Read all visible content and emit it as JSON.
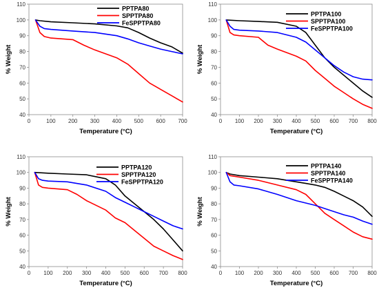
{
  "colors": {
    "black": "#000000",
    "red": "#ff0000",
    "blue": "#0000ff"
  },
  "chart_data": [
    {
      "type": "line",
      "xlabel": "Temperature (°C)",
      "ylabel": "% Weight",
      "xlim": [
        0,
        700
      ],
      "ylim": [
        40,
        110
      ],
      "xticks": [
        0,
        100,
        200,
        300,
        400,
        500,
        600,
        700
      ],
      "yticks": [
        40,
        50,
        60,
        70,
        80,
        90,
        100,
        110
      ],
      "legend_position": "top-right",
      "series": [
        {
          "name": "PPTPA80",
          "color": "black",
          "x": [
            30,
            50,
            100,
            200,
            300,
            400,
            450,
            500,
            550,
            600,
            650,
            700
          ],
          "y": [
            100,
            99.5,
            98.8,
            98.2,
            97.5,
            96.2,
            95,
            92,
            88.5,
            85.5,
            83,
            79
          ]
        },
        {
          "name": "SPPTPA80",
          "color": "red",
          "x": [
            30,
            50,
            70,
            100,
            200,
            250,
            300,
            400,
            450,
            500,
            550,
            600,
            650,
            700
          ],
          "y": [
            100,
            92,
            89.5,
            88.5,
            87.5,
            84,
            81,
            76,
            72,
            66,
            60,
            56,
            52,
            48
          ]
        },
        {
          "name": "FeSPPTPA80",
          "color": "blue",
          "x": [
            30,
            50,
            70,
            100,
            200,
            300,
            400,
            450,
            500,
            550,
            600,
            650,
            700
          ],
          "y": [
            100,
            96,
            94.5,
            94,
            93,
            92,
            90,
            88,
            85.5,
            83.5,
            81.5,
            80,
            78.5
          ]
        }
      ]
    },
    {
      "type": "line",
      "xlabel": "Temperature (°C)",
      "ylabel": "% Weight",
      "xlim": [
        0,
        800
      ],
      "ylim": [
        40,
        110
      ],
      "xticks": [
        0,
        100,
        200,
        300,
        400,
        500,
        600,
        700,
        800
      ],
      "yticks": [
        40,
        50,
        60,
        70,
        80,
        90,
        100,
        110
      ],
      "legend_position": "top-right",
      "series": [
        {
          "name": "PPTPA100",
          "color": "black",
          "x": [
            30,
            100,
            200,
            300,
            400,
            450,
            500,
            550,
            600,
            650,
            700,
            750,
            800
          ],
          "y": [
            100,
            99.5,
            99,
            98.5,
            96,
            92,
            84,
            76,
            70,
            65,
            60,
            55,
            51
          ]
        },
        {
          "name": "SPPTPA100",
          "color": "red",
          "x": [
            30,
            50,
            70,
            100,
            200,
            250,
            300,
            400,
            450,
            500,
            550,
            600,
            650,
            700,
            750,
            800
          ],
          "y": [
            100,
            92,
            90.5,
            90,
            89,
            84,
            81.5,
            77,
            74,
            68,
            63,
            58,
            54,
            50,
            46.5,
            44
          ]
        },
        {
          "name": "FeSPPTPA100",
          "color": "blue",
          "x": [
            30,
            50,
            70,
            100,
            200,
            300,
            400,
            450,
            500,
            550,
            600,
            650,
            700,
            750,
            800
          ],
          "y": [
            100,
            96,
            94,
            93.5,
            93,
            92,
            89,
            86,
            81,
            76,
            71,
            67,
            64,
            62.5,
            62
          ]
        }
      ]
    },
    {
      "type": "line",
      "xlabel": "Temperature (°C)",
      "ylabel": "% Weight",
      "xlim": [
        0,
        800
      ],
      "ylim": [
        40,
        110
      ],
      "xticks": [
        0,
        100,
        200,
        300,
        400,
        500,
        600,
        700,
        800
      ],
      "yticks": [
        40,
        50,
        60,
        70,
        80,
        90,
        100,
        110
      ],
      "legend_position": "top-right",
      "series": [
        {
          "name": "PPTPA120",
          "color": "black",
          "x": [
            30,
            100,
            200,
            300,
            400,
            450,
            500,
            550,
            600,
            650,
            700,
            750,
            800
          ],
          "y": [
            100,
            99.5,
            99,
            98.5,
            96,
            92,
            85,
            80,
            75,
            70,
            64,
            57,
            50
          ]
        },
        {
          "name": "SPPTPA120",
          "color": "red",
          "x": [
            30,
            50,
            70,
            100,
            200,
            250,
            300,
            400,
            450,
            500,
            550,
            600,
            650,
            700,
            750,
            800
          ],
          "y": [
            100,
            92,
            90.5,
            90,
            89,
            86,
            82,
            76,
            71,
            68,
            63,
            58,
            53,
            50,
            47,
            44.5
          ]
        },
        {
          "name": "FeSPPTPA120",
          "color": "blue",
          "x": [
            30,
            50,
            70,
            100,
            200,
            300,
            400,
            450,
            500,
            550,
            600,
            650,
            700,
            750,
            800
          ],
          "y": [
            100,
            96,
            95,
            94.5,
            94,
            92,
            88,
            84,
            81,
            78,
            75,
            72,
            69,
            66,
            64
          ]
        }
      ]
    },
    {
      "type": "line",
      "xlabel": "Temperature (°C)",
      "ylabel": "% Weight",
      "xlim": [
        0,
        800
      ],
      "ylim": [
        40,
        110
      ],
      "xticks": [
        0,
        100,
        200,
        300,
        400,
        500,
        600,
        700,
        800
      ],
      "yticks": [
        40,
        50,
        60,
        70,
        80,
        90,
        100,
        110
      ],
      "legend_position": "top-right",
      "series": [
        {
          "name": "PPTPA140",
          "color": "black",
          "x": [
            30,
            50,
            100,
            200,
            300,
            400,
            450,
            500,
            550,
            600,
            650,
            700,
            750,
            800
          ],
          "y": [
            100,
            99,
            98,
            97,
            96,
            94,
            93,
            92,
            90.5,
            88,
            85,
            82,
            78,
            72
          ]
        },
        {
          "name": "SPPTPA140",
          "color": "red",
          "x": [
            30,
            50,
            100,
            200,
            300,
            400,
            450,
            500,
            550,
            600,
            650,
            700,
            750,
            800
          ],
          "y": [
            100,
            98,
            97,
            95,
            92,
            89,
            86,
            80,
            74,
            70,
            66,
            62,
            59,
            57.5
          ]
        },
        {
          "name": "FeSPPTPA140",
          "color": "blue",
          "x": [
            30,
            50,
            70,
            100,
            200,
            300,
            400,
            450,
            500,
            550,
            600,
            650,
            700,
            750,
            800
          ],
          "y": [
            100,
            94,
            92,
            91.5,
            89.5,
            86,
            82,
            80.5,
            79,
            77,
            75,
            73,
            71.5,
            69,
            67
          ]
        }
      ]
    }
  ]
}
